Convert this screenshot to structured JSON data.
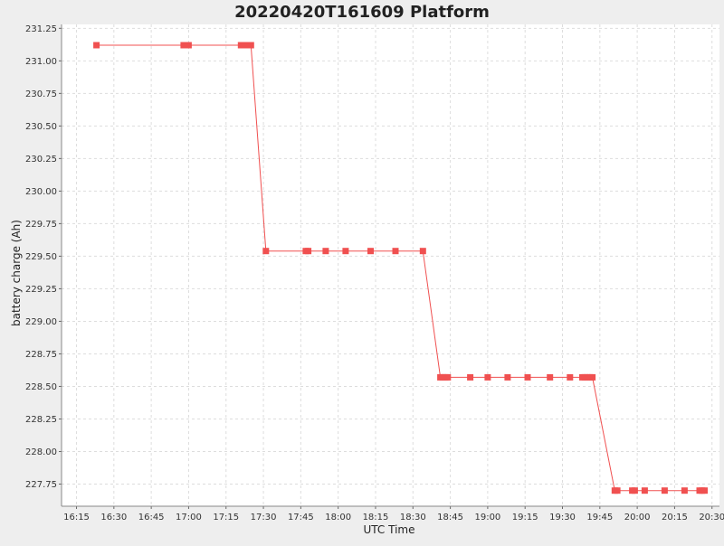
{
  "chart_data": {
    "type": "line",
    "title": "20220420T161609 Platform",
    "xlabel": "UTC Time",
    "ylabel": "battery charge (Ah)",
    "x_ticks": [
      "16:15",
      "16:30",
      "16:45",
      "17:00",
      "17:15",
      "17:30",
      "17:45",
      "18:00",
      "18:15",
      "18:30",
      "18:45",
      "19:00",
      "19:15",
      "19:30",
      "19:45",
      "20:00",
      "20:15",
      "20:30"
    ],
    "y_ticks": [
      "227.75",
      "228.00",
      "228.25",
      "228.50",
      "228.75",
      "229.00",
      "229.25",
      "229.50",
      "229.75",
      "230.00",
      "230.25",
      "230.50",
      "230.75",
      "231.00",
      "231.25"
    ],
    "xlim": [
      "16:09",
      "20:33"
    ],
    "ylim": [
      227.58,
      231.28
    ],
    "grid": true,
    "legend": "none",
    "colors": {
      "series": "#f05050",
      "background": "#eeeeee",
      "plot_bg": "#ffffff",
      "grid": "#dddddd"
    },
    "series": [
      {
        "x": [
          "16:23",
          "16:58",
          "17:00",
          "17:21",
          "17:23",
          "17:24",
          "17:25",
          "17:31",
          "17:47",
          "17:48",
          "17:55",
          "18:03",
          "18:13",
          "18:23",
          "18:34",
          "18:41",
          "18:42",
          "18:43",
          "18:44",
          "18:53",
          "19:00",
          "19:08",
          "19:16",
          "19:25",
          "19:33",
          "19:38",
          "19:39",
          "19:40",
          "19:41",
          "19:42",
          "19:51",
          "19:52",
          "19:58",
          "19:59",
          "20:03",
          "20:11",
          "20:19",
          "20:25",
          "20:26",
          "20:27"
        ],
        "y": [
          231.12,
          231.12,
          231.12,
          231.12,
          231.12,
          231.12,
          231.12,
          229.54,
          229.54,
          229.54,
          229.54,
          229.54,
          229.54,
          229.54,
          229.54,
          228.57,
          228.57,
          228.57,
          228.57,
          228.57,
          228.57,
          228.57,
          228.57,
          228.57,
          228.57,
          228.57,
          228.57,
          228.57,
          228.57,
          228.57,
          227.7,
          227.7,
          227.7,
          227.7,
          227.7,
          227.7,
          227.7,
          227.7,
          227.7,
          227.7
        ]
      }
    ]
  }
}
